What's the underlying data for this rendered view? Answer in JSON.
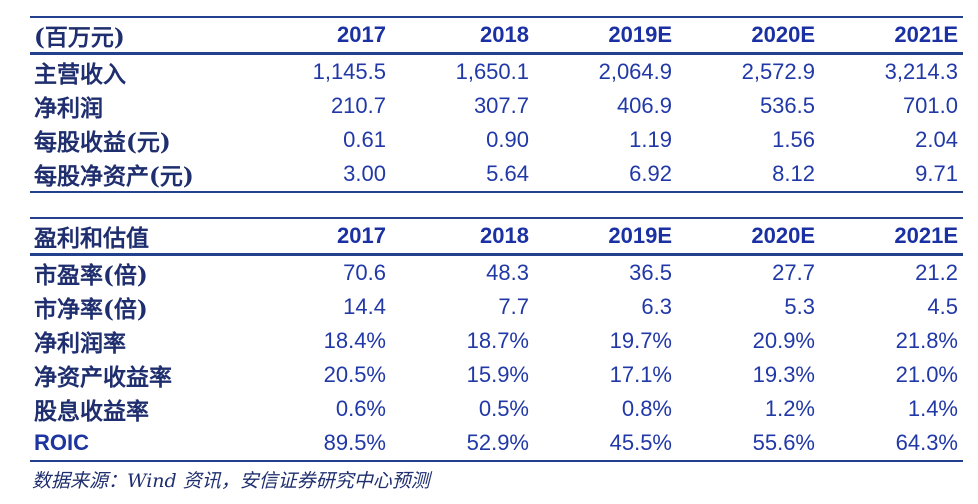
{
  "colors": {
    "background": "#FFFFFF",
    "number_text": "#2138A7",
    "year_header_text": "#1B31A3",
    "cjk_label_text": "#1F2E6E",
    "rule_line": "#23408F"
  },
  "table1": {
    "header_label": "(百万元)",
    "columns": [
      "2017",
      "2018",
      "2019E",
      "2020E",
      "2021E"
    ],
    "rows": [
      {
        "label": "主营收入",
        "values": [
          "1,145.5",
          "1,650.1",
          "2,064.9",
          "2,572.9",
          "3,214.3"
        ]
      },
      {
        "label": "净利润",
        "values": [
          "210.7",
          "307.7",
          "406.9",
          "536.5",
          "701.0"
        ]
      },
      {
        "label": "每股收益(元)",
        "values": [
          "0.61",
          "0.90",
          "1.19",
          "1.56",
          "2.04"
        ]
      },
      {
        "label": "每股净资产(元)",
        "values": [
          "3.00",
          "5.64",
          "6.92",
          "8.12",
          "9.71"
        ]
      }
    ]
  },
  "table2": {
    "header_label": "盈利和估值",
    "columns": [
      "2017",
      "2018",
      "2019E",
      "2020E",
      "2021E"
    ],
    "rows": [
      {
        "label": "市盈率(倍)",
        "values": [
          "70.6",
          "48.3",
          "36.5",
          "27.7",
          "21.2"
        ]
      },
      {
        "label": "市净率(倍)",
        "values": [
          "14.4",
          "7.7",
          "6.3",
          "5.3",
          "4.5"
        ]
      },
      {
        "label": "净利润率",
        "values": [
          "18.4%",
          "18.7%",
          "19.7%",
          "20.9%",
          "21.8%"
        ]
      },
      {
        "label": "净资产收益率",
        "values": [
          "20.5%",
          "15.9%",
          "17.1%",
          "19.3%",
          "21.0%"
        ]
      },
      {
        "label": "股息收益率",
        "values": [
          "0.6%",
          "0.5%",
          "0.8%",
          "1.2%",
          "1.4%"
        ]
      },
      {
        "label": "ROIC",
        "values": [
          "89.5%",
          "52.9%",
          "45.5%",
          "55.6%",
          "64.3%"
        ]
      }
    ]
  },
  "footer": {
    "source_note": "数据来源：Wind 资讯，安信证券研究中心预测"
  },
  "chart_data": [
    {
      "type": "table",
      "title": "财务摘要 (百万元)",
      "columns": [
        "(百万元)",
        "2017",
        "2018",
        "2019E",
        "2020E",
        "2021E"
      ],
      "rows": [
        [
          "主营收入",
          1145.5,
          1650.1,
          2064.9,
          2572.9,
          3214.3
        ],
        [
          "净利润",
          210.7,
          307.7,
          406.9,
          536.5,
          701.0
        ],
        [
          "每股收益(元)",
          0.61,
          0.9,
          1.19,
          1.56,
          2.04
        ],
        [
          "每股净资产(元)",
          3.0,
          5.64,
          6.92,
          8.12,
          9.71
        ]
      ]
    },
    {
      "type": "table",
      "title": "盈利和估值",
      "columns": [
        "盈利和估值",
        "2017",
        "2018",
        "2019E",
        "2020E",
        "2021E"
      ],
      "rows": [
        [
          "市盈率(倍)",
          70.6,
          48.3,
          36.5,
          27.7,
          21.2
        ],
        [
          "市净率(倍)",
          14.4,
          7.7,
          6.3,
          5.3,
          4.5
        ],
        [
          "净利润率",
          "18.4%",
          "18.7%",
          "19.7%",
          "20.9%",
          "21.8%"
        ],
        [
          "净资产收益率",
          "20.5%",
          "15.9%",
          "17.1%",
          "19.3%",
          "21.0%"
        ],
        [
          "股息收益率",
          "0.6%",
          "0.5%",
          "0.8%",
          "1.2%",
          "1.4%"
        ],
        [
          "ROIC",
          "89.5%",
          "52.9%",
          "45.5%",
          "55.6%",
          "64.3%"
        ]
      ]
    }
  ]
}
